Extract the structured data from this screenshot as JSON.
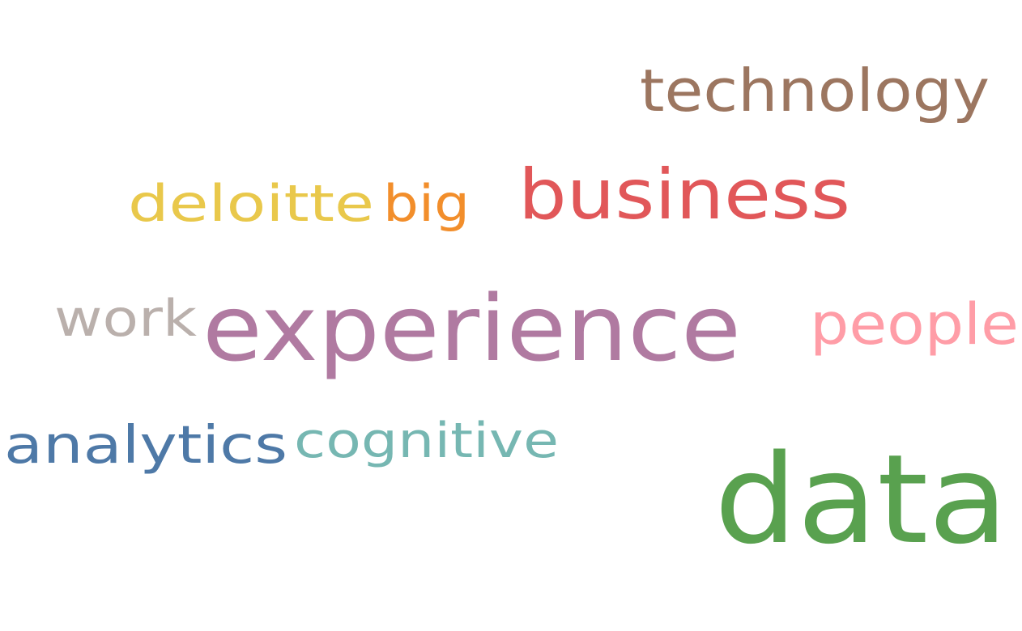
{
  "words": [
    {
      "text": "technology",
      "color": "#9c7660"
    },
    {
      "text": "deloitte",
      "color": "#e9c84b"
    },
    {
      "text": "big",
      "color": "#f28e2b"
    },
    {
      "text": "business",
      "color": "#e15759"
    },
    {
      "text": "work",
      "color": "#bab0ac"
    },
    {
      "text": "experience",
      "color": "#b07aa1"
    },
    {
      "text": "people",
      "color": "#ff9da7"
    },
    {
      "text": "analytics",
      "color": "#4e79a7"
    },
    {
      "text": "cognitive",
      "color": "#76b7b2"
    },
    {
      "text": "data",
      "color": "#59a14f"
    }
  ]
}
